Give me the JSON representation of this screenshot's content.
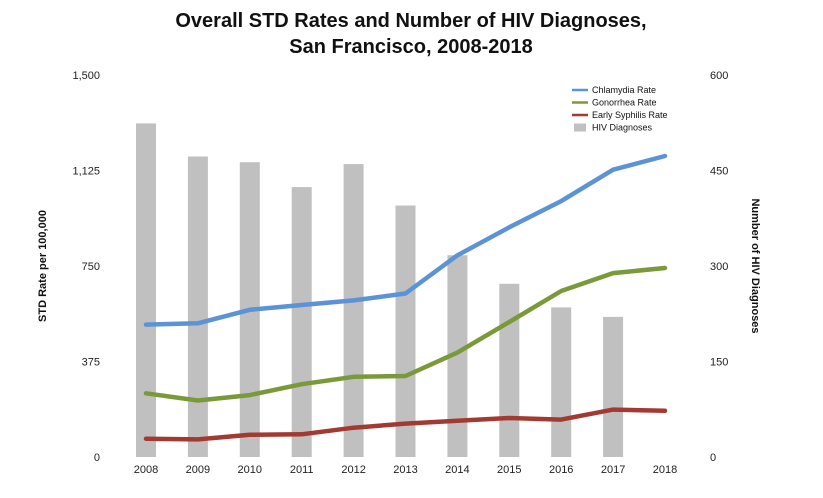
{
  "chart_data": {
    "type": "bar",
    "title_lines": [
      "Overall STD Rates and Number of HIV Diagnoses,",
      "San Francisco, 2008-2018"
    ],
    "categories": [
      "2008",
      "2009",
      "2010",
      "2011",
      "2012",
      "2013",
      "2014",
      "2015",
      "2016",
      "2017",
      "2018"
    ],
    "ylabel_left": "STD Rate per 100,000",
    "ylabel_right": "Number of HIV Diagnoses",
    "ylim_left": [
      0,
      1500
    ],
    "ylim_right": [
      0,
      600
    ],
    "yticks_left": [
      "0",
      "375",
      "750",
      "1,125",
      "1,500"
    ],
    "yticks_right": [
      "0",
      "150",
      "300",
      "450",
      "600"
    ],
    "legend_position": "top-right",
    "bars": {
      "name": "HIV Diagnoses",
      "axis": "right",
      "color": "#c0c0c0",
      "values": [
        524,
        472,
        463,
        424,
        460,
        395,
        317,
        272,
        235,
        220,
        null
      ]
    },
    "series": [
      {
        "name": "Chlamydia Rate",
        "axis": "left",
        "color": "#5b93d6",
        "values": [
          520,
          525,
          578,
          597,
          615,
          642,
          792,
          902,
          1005,
          1128,
          1182
        ]
      },
      {
        "name": "Gonorrhea Rate",
        "axis": "left",
        "color": "#7a9a3a",
        "values": [
          250,
          222,
          243,
          286,
          315,
          318,
          410,
          530,
          652,
          722,
          742
        ]
      },
      {
        "name": "Early Syphilis Rate",
        "axis": "left",
        "color": "#a33a32",
        "values": [
          72,
          69,
          87,
          89,
          115,
          131,
          142,
          153,
          147,
          186,
          182
        ]
      }
    ]
  }
}
